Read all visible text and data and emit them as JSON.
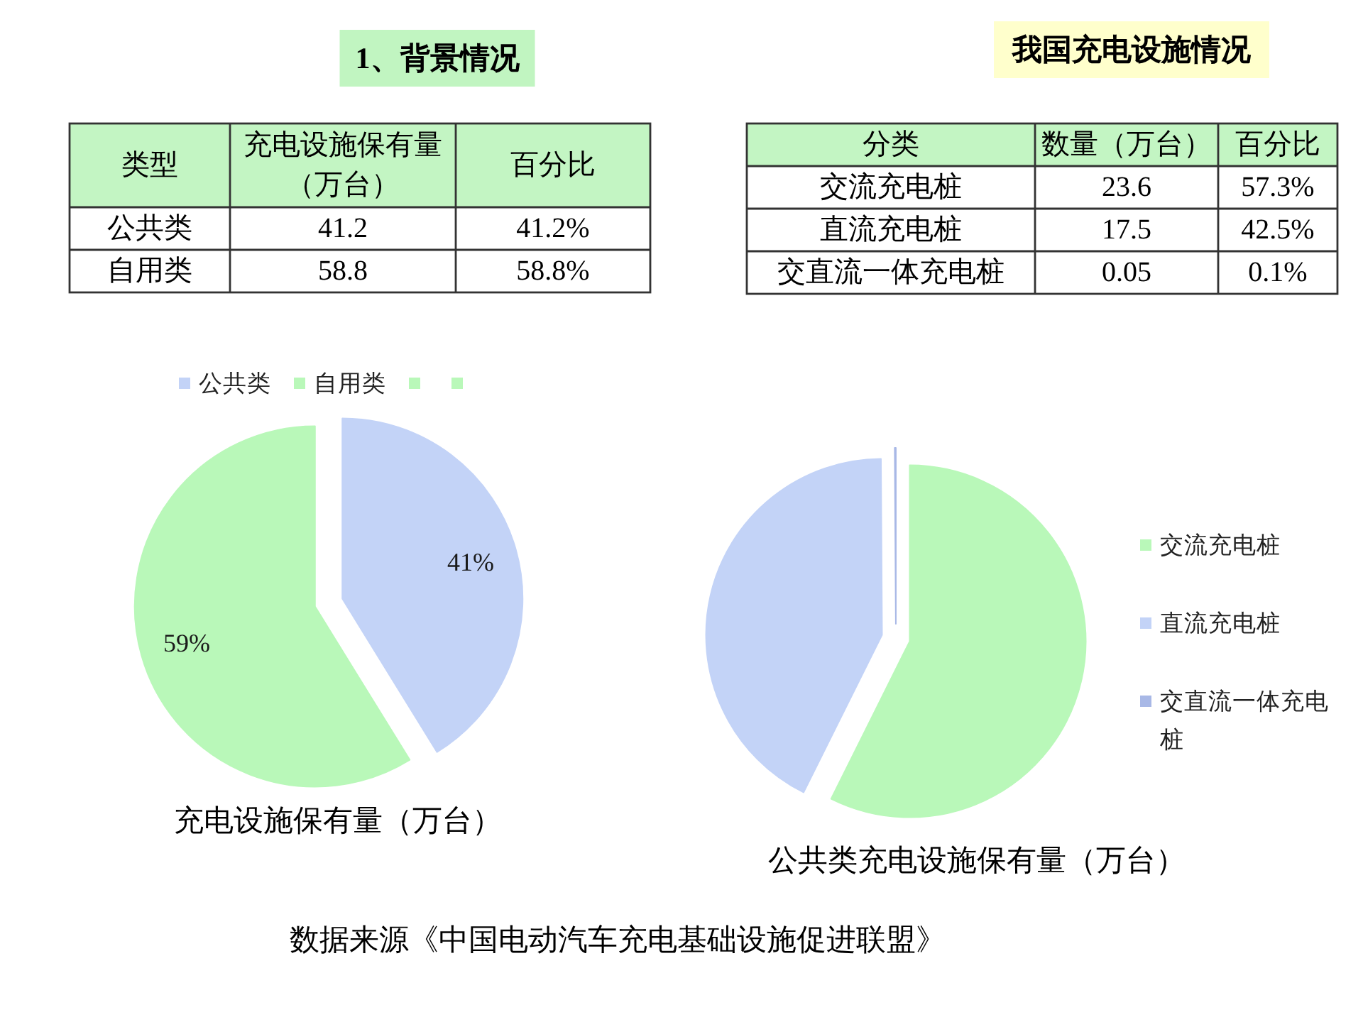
{
  "chart_data": [
    {
      "type": "other",
      "title": "1、背景情况",
      "xlabel": "类型",
      "categories": [
        "公共类",
        "自用类"
      ],
      "series": [
        {
          "name": "充电设施保有量（万台）",
          "values": [
            41.2,
            58.8
          ]
        },
        {
          "name": "百分比",
          "values": [
            41.2,
            58.8
          ],
          "value_labels": [
            "41.2%",
            "58.8%"
          ]
        }
      ],
      "data_labels": true
    },
    {
      "type": "other",
      "title": "我国充电设施情况",
      "xlabel": "分类",
      "categories": [
        "交流充电桩",
        "直流充电桩",
        "交直流一体充电桩"
      ],
      "series": [
        {
          "name": "数量（万台）",
          "values": [
            23.6,
            17.5,
            0.05
          ]
        },
        {
          "name": "百分比",
          "values": [
            57.3,
            42.5,
            0.1
          ],
          "value_labels": [
            "57.3%",
            "42.5%",
            "0.1%"
          ]
        }
      ],
      "data_labels": true
    },
    {
      "type": "pie",
      "title": "充电设施保有量（万台）",
      "categories": [
        "公共类",
        "自用类",
        null,
        null
      ],
      "values": [
        41.2,
        58.8,
        0,
        0
      ],
      "colors": [
        "#c3d3f7",
        "#b9f8b9",
        "#b9f8b9",
        "#b9f8b9"
      ],
      "value_labels": [
        "41%",
        "59%",
        null,
        null
      ],
      "legend": "top"
    },
    {
      "type": "pie",
      "title": "公共类充电设施保有量（万台）",
      "categories": [
        "交流充电桩",
        "直流充电桩",
        "交直流一体充电桩"
      ],
      "values": [
        57.3,
        42.5,
        0.1
      ],
      "colors": [
        "#b9f8b9",
        "#c3d3f7",
        "#a8b8e6"
      ],
      "legend": "right",
      "annotations": [
        "数据来源《中国电动汽车充电基础设施促进联盟》"
      ]
    }
  ]
}
